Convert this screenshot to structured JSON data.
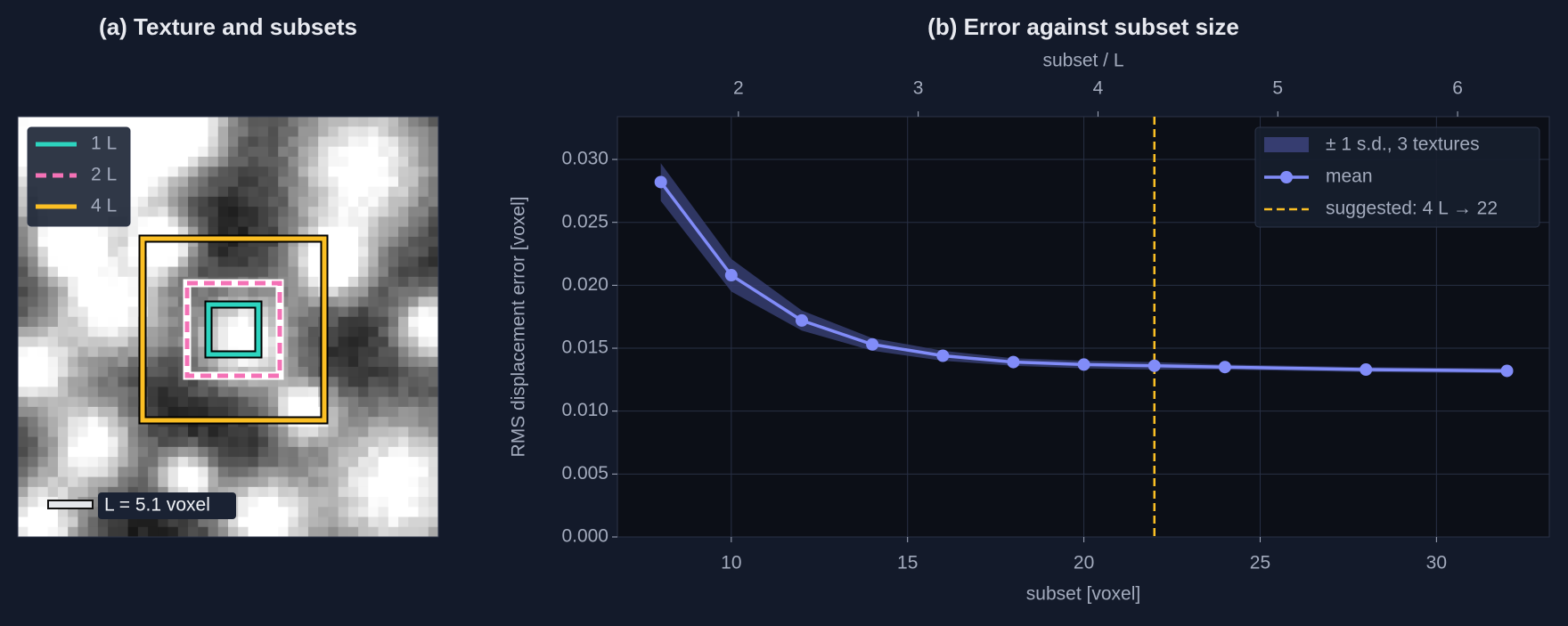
{
  "panel_a": {
    "title": "(a) Texture and subsets",
    "legend": [
      "1 L",
      "2 L",
      "4 L"
    ],
    "scale_label": "L = 5.1 voxel"
  },
  "chart_data": {
    "type": "line",
    "title": "(b) Error against subset size",
    "xlabel": "subset [voxel]",
    "ylabel": "RMS displacement error [voxel]",
    "x2label": "subset / L",
    "x": [
      8,
      10,
      12,
      14,
      16,
      18,
      20,
      22,
      24,
      28,
      32
    ],
    "series": [
      {
        "name": "mean",
        "color": "#818cf8",
        "values": [
          0.0282,
          0.0208,
          0.0172,
          0.0153,
          0.0144,
          0.0139,
          0.0137,
          0.0136,
          0.0135,
          0.0133,
          0.0132
        ],
        "sd": [
          0.0015,
          0.0013,
          0.0008,
          0.0005,
          0.0004,
          0.0003,
          0.0003,
          0.0003,
          0.0002,
          0.0002,
          0.0002
        ]
      }
    ],
    "band": {
      "name": "± 1 s.d., 3 textures",
      "color": "#363d70"
    },
    "vline": {
      "x": 22,
      "name": "suggested: 4 L → 22",
      "color": "#fbbf24"
    },
    "xlim": [
      6.77,
      33.2
    ],
    "xticks": [
      10,
      15,
      20,
      25,
      30
    ],
    "x2lim": [
      1.327,
      6.51
    ],
    "x2ticks": [
      2,
      3,
      4,
      5,
      6
    ],
    "ylim": [
      0,
      0.0334
    ],
    "yticks": [
      {
        "value": 0,
        "label": "0.000"
      },
      {
        "value": 0.005,
        "label": "0.005"
      },
      {
        "value": 0.01,
        "label": "0.010"
      },
      {
        "value": 0.015,
        "label": "0.015"
      },
      {
        "value": 0.02,
        "label": "0.020"
      },
      {
        "value": 0.025,
        "label": "0.025"
      },
      {
        "value": 0.03,
        "label": "0.030"
      }
    ],
    "grid": true,
    "legend": "upper right"
  }
}
